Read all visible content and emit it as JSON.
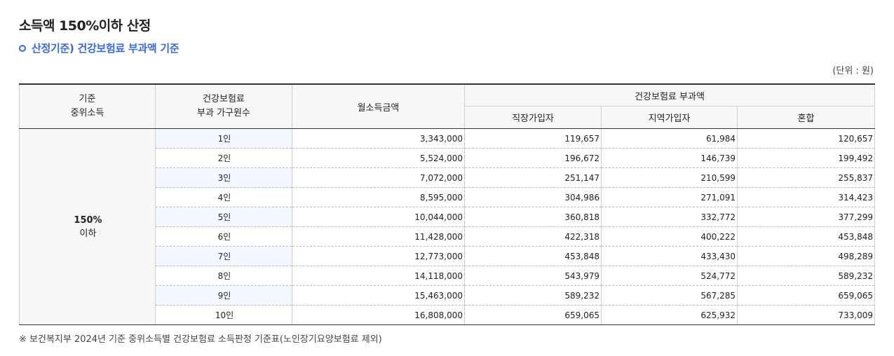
{
  "title": "소득액 150%이하 산정",
  "subtitle": "산정기준) 건강보험료 부과액 기준",
  "unit": "(단위 : 원)",
  "table": {
    "headers": {
      "col1_line1": "기준",
      "col1_line2": "중위소득",
      "col2_line1": "건강보험료",
      "col2_line2": "부과 가구원수",
      "col3": "월소득금액",
      "group": "건강보험료 부과액",
      "sub1": "직장가입자",
      "sub2": "지역가입자",
      "sub3": "혼합"
    },
    "level_main": "150%",
    "level_sub": "이하",
    "rows": [
      {
        "count": "1인",
        "income": "3,343,000",
        "workplace": "119,657",
        "regional": "61,984",
        "mixed": "120,657"
      },
      {
        "count": "2인",
        "income": "5,524,000",
        "workplace": "196,672",
        "regional": "146,739",
        "mixed": "199,492"
      },
      {
        "count": "3인",
        "income": "7,072,000",
        "workplace": "251,147",
        "regional": "210,599",
        "mixed": "255,837"
      },
      {
        "count": "4인",
        "income": "8,595,000",
        "workplace": "304,986",
        "regional": "271,091",
        "mixed": "314,423"
      },
      {
        "count": "5인",
        "income": "10,044,000",
        "workplace": "360,818",
        "regional": "332,772",
        "mixed": "377,299"
      },
      {
        "count": "6인",
        "income": "11,428,000",
        "workplace": "422,318",
        "regional": "400,222",
        "mixed": "453,848"
      },
      {
        "count": "7인",
        "income": "12,773,000",
        "workplace": "453,848",
        "regional": "433,430",
        "mixed": "498,289"
      },
      {
        "count": "8인",
        "income": "14,118,000",
        "workplace": "543,979",
        "regional": "524,772",
        "mixed": "589,232"
      },
      {
        "count": "9인",
        "income": "15,463,000",
        "workplace": "589,232",
        "regional": "567,285",
        "mixed": "659,065"
      },
      {
        "count": "10인",
        "income": "16,808,000",
        "workplace": "659,065",
        "regional": "625,932",
        "mixed": "733,009"
      }
    ]
  },
  "footnote": "※ 보건복지부 2024년 기준 중위소득별 건강보험료 소득판정 기준표(노인장기요양보험료 제외)",
  "colors": {
    "accent": "#3a6ad4",
    "header_bg": "#f7f7f7",
    "row_highlight": "#f3f7ff"
  }
}
